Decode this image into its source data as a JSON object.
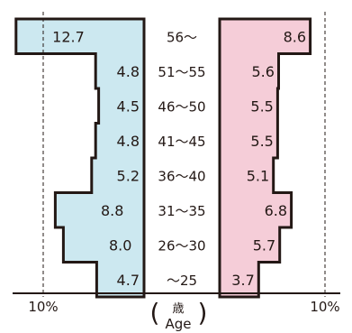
{
  "chart_data": {
    "type": "bar",
    "orientation": "horizontal",
    "layout": "back-to-back population pyramid",
    "title": "",
    "categories": [
      "56〜",
      "51〜55",
      "46〜50",
      "41〜45",
      "36〜40",
      "31〜35",
      "26〜30",
      "〜25"
    ],
    "series": [
      {
        "side": "left",
        "values": [
          12.7,
          4.8,
          4.5,
          4.8,
          5.2,
          8.8,
          8.0,
          4.7
        ],
        "labels": [
          "12.7",
          "4.8",
          "4.5",
          "4.8",
          "5.2",
          "8.8",
          "8.0",
          "4.7"
        ]
      },
      {
        "side": "right",
        "values": [
          8.6,
          5.6,
          5.5,
          5.5,
          5.1,
          6.8,
          5.7,
          3.7
        ],
        "labels": [
          "8.6",
          "5.6",
          "5.5",
          "5.5",
          "5.1",
          "6.8",
          "5.7",
          "3.7"
        ]
      }
    ],
    "xlim": [
      0,
      14
    ],
    "reference_line": 10,
    "tick_labels": {
      "left": "10%",
      "right": "10%"
    },
    "ylabel": {
      "kanji": "歳",
      "latin": "Age"
    },
    "colors": {
      "left_fill": "#cce8f0",
      "right_fill": "#f5cdd8",
      "outline": "#231815"
    }
  }
}
